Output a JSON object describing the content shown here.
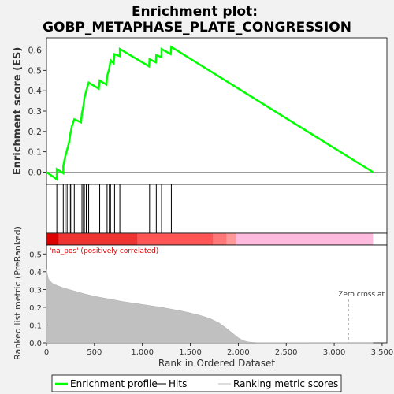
{
  "chart_data": {
    "type": "line",
    "title_line1": "Enrichment plot:",
    "title_line2": "GOBP_METAPHASE_PLATE_CONGRESSION",
    "top_panel": {
      "ylabel": "Enrichment score (ES)",
      "ylim": [
        -0.06,
        0.66
      ],
      "yticks": [
        "0.0",
        "0.1",
        "0.2",
        "0.3",
        "0.4",
        "0.5",
        "0.6"
      ],
      "ytick_values": [
        0.0,
        0.1,
        0.2,
        0.3,
        0.4,
        0.5,
        0.6
      ],
      "series_color": "#00ff00",
      "es_points": [
        [
          0,
          0.0
        ],
        [
          108,
          -0.035
        ],
        [
          108,
          0.015
        ],
        [
          175,
          -0.005
        ],
        [
          175,
          0.03
        ],
        [
          195,
          0.075
        ],
        [
          215,
          0.11
        ],
        [
          235,
          0.145
        ],
        [
          250,
          0.19
        ],
        [
          265,
          0.225
        ],
        [
          290,
          0.26
        ],
        [
          360,
          0.245
        ],
        [
          370,
          0.29
        ],
        [
          385,
          0.325
        ],
        [
          395,
          0.365
        ],
        [
          415,
          0.4
        ],
        [
          440,
          0.44
        ],
        [
          545,
          0.41
        ],
        [
          555,
          0.45
        ],
        [
          625,
          0.43
        ],
        [
          632,
          0.47
        ],
        [
          655,
          0.51
        ],
        [
          668,
          0.55
        ],
        [
          700,
          0.535
        ],
        [
          710,
          0.58
        ],
        [
          765,
          0.57
        ],
        [
          765,
          0.605
        ],
        [
          1070,
          0.52
        ],
        [
          1075,
          0.555
        ],
        [
          1140,
          0.54
        ],
        [
          1145,
          0.575
        ],
        [
          1200,
          0.565
        ],
        [
          1200,
          0.605
        ],
        [
          1295,
          0.58
        ],
        [
          1302,
          0.615
        ],
        [
          3405,
          0.0
        ]
      ]
    },
    "hits_panel": {
      "hit_ranks": [
        108,
        175,
        195,
        215,
        235,
        250,
        265,
        290,
        370,
        385,
        395,
        415,
        440,
        555,
        632,
        655,
        668,
        710,
        765,
        1075,
        1145,
        1200,
        1302
      ]
    },
    "color_bar": {
      "segments": [
        {
          "start": 0,
          "end": 130,
          "color": "#dd0000"
        },
        {
          "start": 130,
          "end": 950,
          "color": "#ee3333"
        },
        {
          "start": 950,
          "end": 1740,
          "color": "#ff5555"
        },
        {
          "start": 1740,
          "end": 1880,
          "color": "#ff7777"
        },
        {
          "start": 1880,
          "end": 1980,
          "color": "#ff9999"
        },
        {
          "start": 1980,
          "end": 3405,
          "color": "#ffbbdd"
        }
      ]
    },
    "bottom_panel": {
      "ylabel": "Ranked list metric (PreRanked)",
      "xlabel": "Rank in Ordered Dataset",
      "ylim": [
        0,
        0.55
      ],
      "yticks": [
        "0.0",
        "0.1",
        "0.2",
        "0.3",
        "0.4",
        "0.5"
      ],
      "ytick_values": [
        0.0,
        0.1,
        0.2,
        0.3,
        0.4,
        0.5
      ],
      "metric_curve": [
        [
          0,
          0.41
        ],
        [
          20,
          0.36
        ],
        [
          60,
          0.335
        ],
        [
          120,
          0.32
        ],
        [
          200,
          0.305
        ],
        [
          300,
          0.29
        ],
        [
          400,
          0.275
        ],
        [
          500,
          0.262
        ],
        [
          600,
          0.252
        ],
        [
          700,
          0.242
        ],
        [
          800,
          0.232
        ],
        [
          900,
          0.224
        ],
        [
          1000,
          0.216
        ],
        [
          1100,
          0.208
        ],
        [
          1200,
          0.2
        ],
        [
          1300,
          0.19
        ],
        [
          1400,
          0.18
        ],
        [
          1500,
          0.168
        ],
        [
          1600,
          0.155
        ],
        [
          1700,
          0.138
        ],
        [
          1800,
          0.112
        ],
        [
          1900,
          0.072
        ],
        [
          1950,
          0.05
        ],
        [
          2000,
          0.028
        ],
        [
          2050,
          0.013
        ],
        [
          2100,
          0.005
        ],
        [
          2200,
          0.001
        ],
        [
          3405,
          0.0
        ]
      ],
      "pos_label": "'na_pos' (positively correlated)",
      "pos_label_color": "#dd0000",
      "zero_cross_label": "Zero cross at",
      "zero_cross_rank": 3150
    },
    "xlim": [
      0,
      3550
    ],
    "xticks": [
      "0",
      "500",
      "1,000",
      "1,500",
      "2,000",
      "2,500",
      "3,000",
      "3,500"
    ],
    "xtick_values": [
      0,
      500,
      1000,
      1500,
      2000,
      2500,
      3000,
      3500
    ]
  },
  "legend": {
    "items": [
      {
        "label": "Enrichment profile",
        "color": "#00ff00",
        "kind": "thick"
      },
      {
        "label": "Hits",
        "color": "#000000",
        "kind": "thin"
      },
      {
        "label": "Ranking metric scores",
        "color": "#bbbbbb",
        "kind": "thin"
      }
    ]
  }
}
